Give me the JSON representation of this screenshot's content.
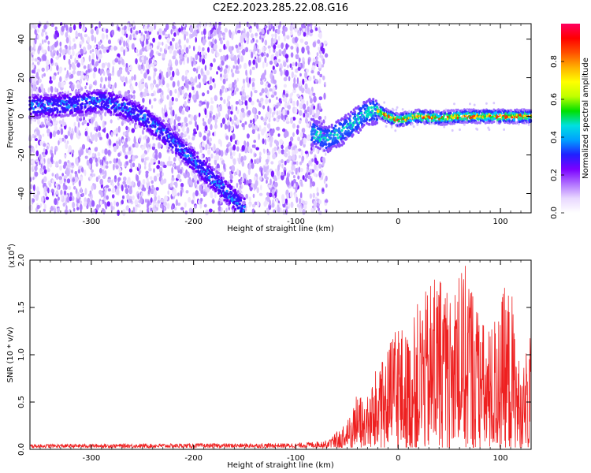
{
  "title": "C2E2.2023.285.22.08.G16",
  "chart_data": [
    {
      "type": "heatmap",
      "xlabel": "Height of straight line (km)",
      "ylabel": "Frequency (Hz)",
      "xlim": [
        -360,
        130
      ],
      "ylim": [
        -50,
        48
      ],
      "x_ticks": [
        -300,
        -200,
        -100,
        0,
        100
      ],
      "x_tick_labels": [
        "-300",
        "-200",
        "-100",
        "0",
        "100"
      ],
      "y_ticks": [
        -40,
        -20,
        0,
        20,
        40
      ],
      "y_tick_labels": [
        "-40",
        "-20",
        "0",
        "20",
        "40"
      ],
      "noise_region_x": [
        -360,
        -70
      ],
      "ridge": {
        "x": [
          -360,
          -320,
          -290,
          -270,
          -250,
          -230,
          -210,
          -190,
          -170,
          -150,
          -85,
          -70,
          -55,
          -40,
          -30,
          -20,
          -10,
          0,
          20,
          40,
          60,
          80,
          100,
          130
        ],
        "y": [
          5,
          6,
          8,
          5,
          0,
          -8,
          -18,
          -28,
          -38,
          -48,
          -8,
          -12,
          -8,
          -2,
          2,
          3,
          0,
          -2,
          0,
          -1,
          0,
          0,
          0,
          0
        ]
      },
      "colorbar": {
        "label": "Normalized spectral amplitude",
        "range": [
          0.0,
          1.0
        ],
        "ticks": [
          0.0,
          0.2,
          0.4,
          0.6,
          0.8
        ],
        "tick_labels": [
          "0.0",
          "0.2",
          "0.4",
          "0.6",
          "0.8"
        ],
        "colors": [
          "#ffffff",
          "#e8d8ff",
          "#b070ff",
          "#7b00ff",
          "#2020ff",
          "#00a0ff",
          "#00e0e0",
          "#00e000",
          "#c0ff00",
          "#ffff00",
          "#ffb000",
          "#ff5000",
          "#ff0000",
          "#ff0060"
        ]
      }
    },
    {
      "type": "line",
      "xlabel": "Height of straight line (km)",
      "ylabel": "SNR (10 * v/v)",
      "scale_label": "(x10",
      "scale_exp": "4",
      "scale_close": ")",
      "xlim": [
        -360,
        130
      ],
      "ylim": [
        0,
        2.0
      ],
      "x_ticks": [
        -300,
        -200,
        -100,
        0,
        100
      ],
      "x_tick_labels": [
        "-300",
        "-200",
        "-100",
        "0",
        "100"
      ],
      "y_ticks": [
        0,
        0.5,
        1.0,
        1.5,
        2.0
      ],
      "y_tick_labels": [
        "0.0",
        "0.5",
        "1.0",
        "1.5",
        "2.0"
      ],
      "series": [
        {
          "color": "#ee2020",
          "envelope_x": [
            -360,
            -100,
            -70,
            -50,
            -40,
            -30,
            -20,
            -10,
            0,
            10,
            20,
            30,
            40,
            50,
            60,
            70,
            80,
            90,
            100,
            110,
            120,
            130
          ],
          "envelope_y": [
            0.04,
            0.05,
            0.08,
            0.3,
            0.6,
            0.55,
            0.9,
            1.05,
            1.4,
            1.2,
            1.6,
            1.7,
            1.95,
            1.6,
            1.9,
            2.0,
            1.4,
            1.3,
            1.65,
            1.8,
            0.8,
            1.25
          ]
        }
      ]
    }
  ]
}
